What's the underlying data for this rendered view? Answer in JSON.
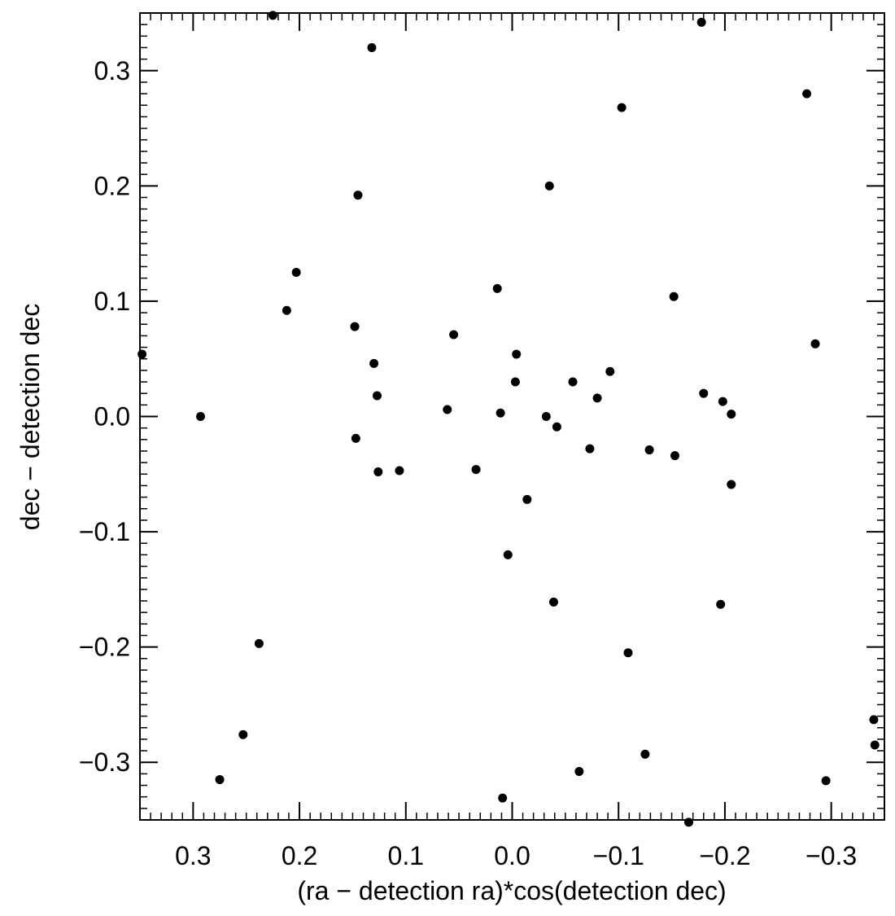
{
  "chart_data": {
    "type": "scatter",
    "title": "",
    "xlabel": "(ra − detection ra)*cos(detection dec)",
    "ylabel": "dec − detection dec",
    "xlim": [
      0.35,
      -0.35
    ],
    "ylim": [
      -0.35,
      0.35
    ],
    "x_reversed": true,
    "grid": false,
    "legend": "none",
    "marker_color": "#000000",
    "x_ticks": [
      {
        "value": 0.3,
        "label": "0.3"
      },
      {
        "value": 0.2,
        "label": "0.2"
      },
      {
        "value": 0.1,
        "label": "0.1"
      },
      {
        "value": 0.0,
        "label": "0.0"
      },
      {
        "value": -0.1,
        "label": "−0.1"
      },
      {
        "value": -0.2,
        "label": "−0.2"
      },
      {
        "value": -0.3,
        "label": "−0.3"
      }
    ],
    "y_ticks": [
      {
        "value": 0.3,
        "label": "0.3"
      },
      {
        "value": 0.2,
        "label": "0.2"
      },
      {
        "value": 0.1,
        "label": "0.1"
      },
      {
        "value": 0.0,
        "label": "0.0"
      },
      {
        "value": -0.1,
        "label": "−0.1"
      },
      {
        "value": -0.2,
        "label": "−0.2"
      },
      {
        "value": -0.3,
        "label": "−0.3"
      }
    ],
    "points": [
      [
        0.225,
        0.348
      ],
      [
        -0.178,
        0.342
      ],
      [
        0.132,
        0.32
      ],
      [
        -0.277,
        0.28
      ],
      [
        -0.103,
        0.268
      ],
      [
        -0.035,
        0.2
      ],
      [
        0.145,
        0.192
      ],
      [
        0.203,
        0.125
      ],
      [
        0.212,
        0.092
      ],
      [
        0.014,
        0.111
      ],
      [
        -0.152,
        0.104
      ],
      [
        0.148,
        0.078
      ],
      [
        0.055,
        0.071
      ],
      [
        -0.285,
        0.063
      ],
      [
        0.348,
        0.054
      ],
      [
        0.13,
        0.046
      ],
      [
        -0.004,
        0.054
      ],
      [
        -0.092,
        0.039
      ],
      [
        -0.003,
        0.03
      ],
      [
        -0.057,
        0.03
      ],
      [
        0.127,
        0.018
      ],
      [
        -0.18,
        0.02
      ],
      [
        -0.08,
        0.016
      ],
      [
        -0.198,
        0.013
      ],
      [
        0.061,
        0.006
      ],
      [
        0.011,
        0.003
      ],
      [
        -0.032,
        0.0
      ],
      [
        -0.206,
        0.002
      ],
      [
        0.293,
        0.0
      ],
      [
        -0.042,
        -0.009
      ],
      [
        0.147,
        -0.019
      ],
      [
        -0.073,
        -0.028
      ],
      [
        -0.129,
        -0.029
      ],
      [
        -0.153,
        -0.034
      ],
      [
        0.034,
        -0.046
      ],
      [
        0.106,
        -0.047
      ],
      [
        0.126,
        -0.048
      ],
      [
        -0.206,
        -0.059
      ],
      [
        -0.014,
        -0.072
      ],
      [
        0.004,
        -0.12
      ],
      [
        -0.039,
        -0.161
      ],
      [
        -0.196,
        -0.163
      ],
      [
        0.238,
        -0.197
      ],
      [
        -0.109,
        -0.205
      ],
      [
        -0.34,
        -0.263
      ],
      [
        0.253,
        -0.276
      ],
      [
        -0.341,
        -0.285
      ],
      [
        -0.125,
        -0.293
      ],
      [
        -0.063,
        -0.308
      ],
      [
        0.275,
        -0.315
      ],
      [
        -0.295,
        -0.316
      ],
      [
        0.009,
        -0.331
      ],
      [
        -0.166,
        -0.352
      ]
    ]
  }
}
